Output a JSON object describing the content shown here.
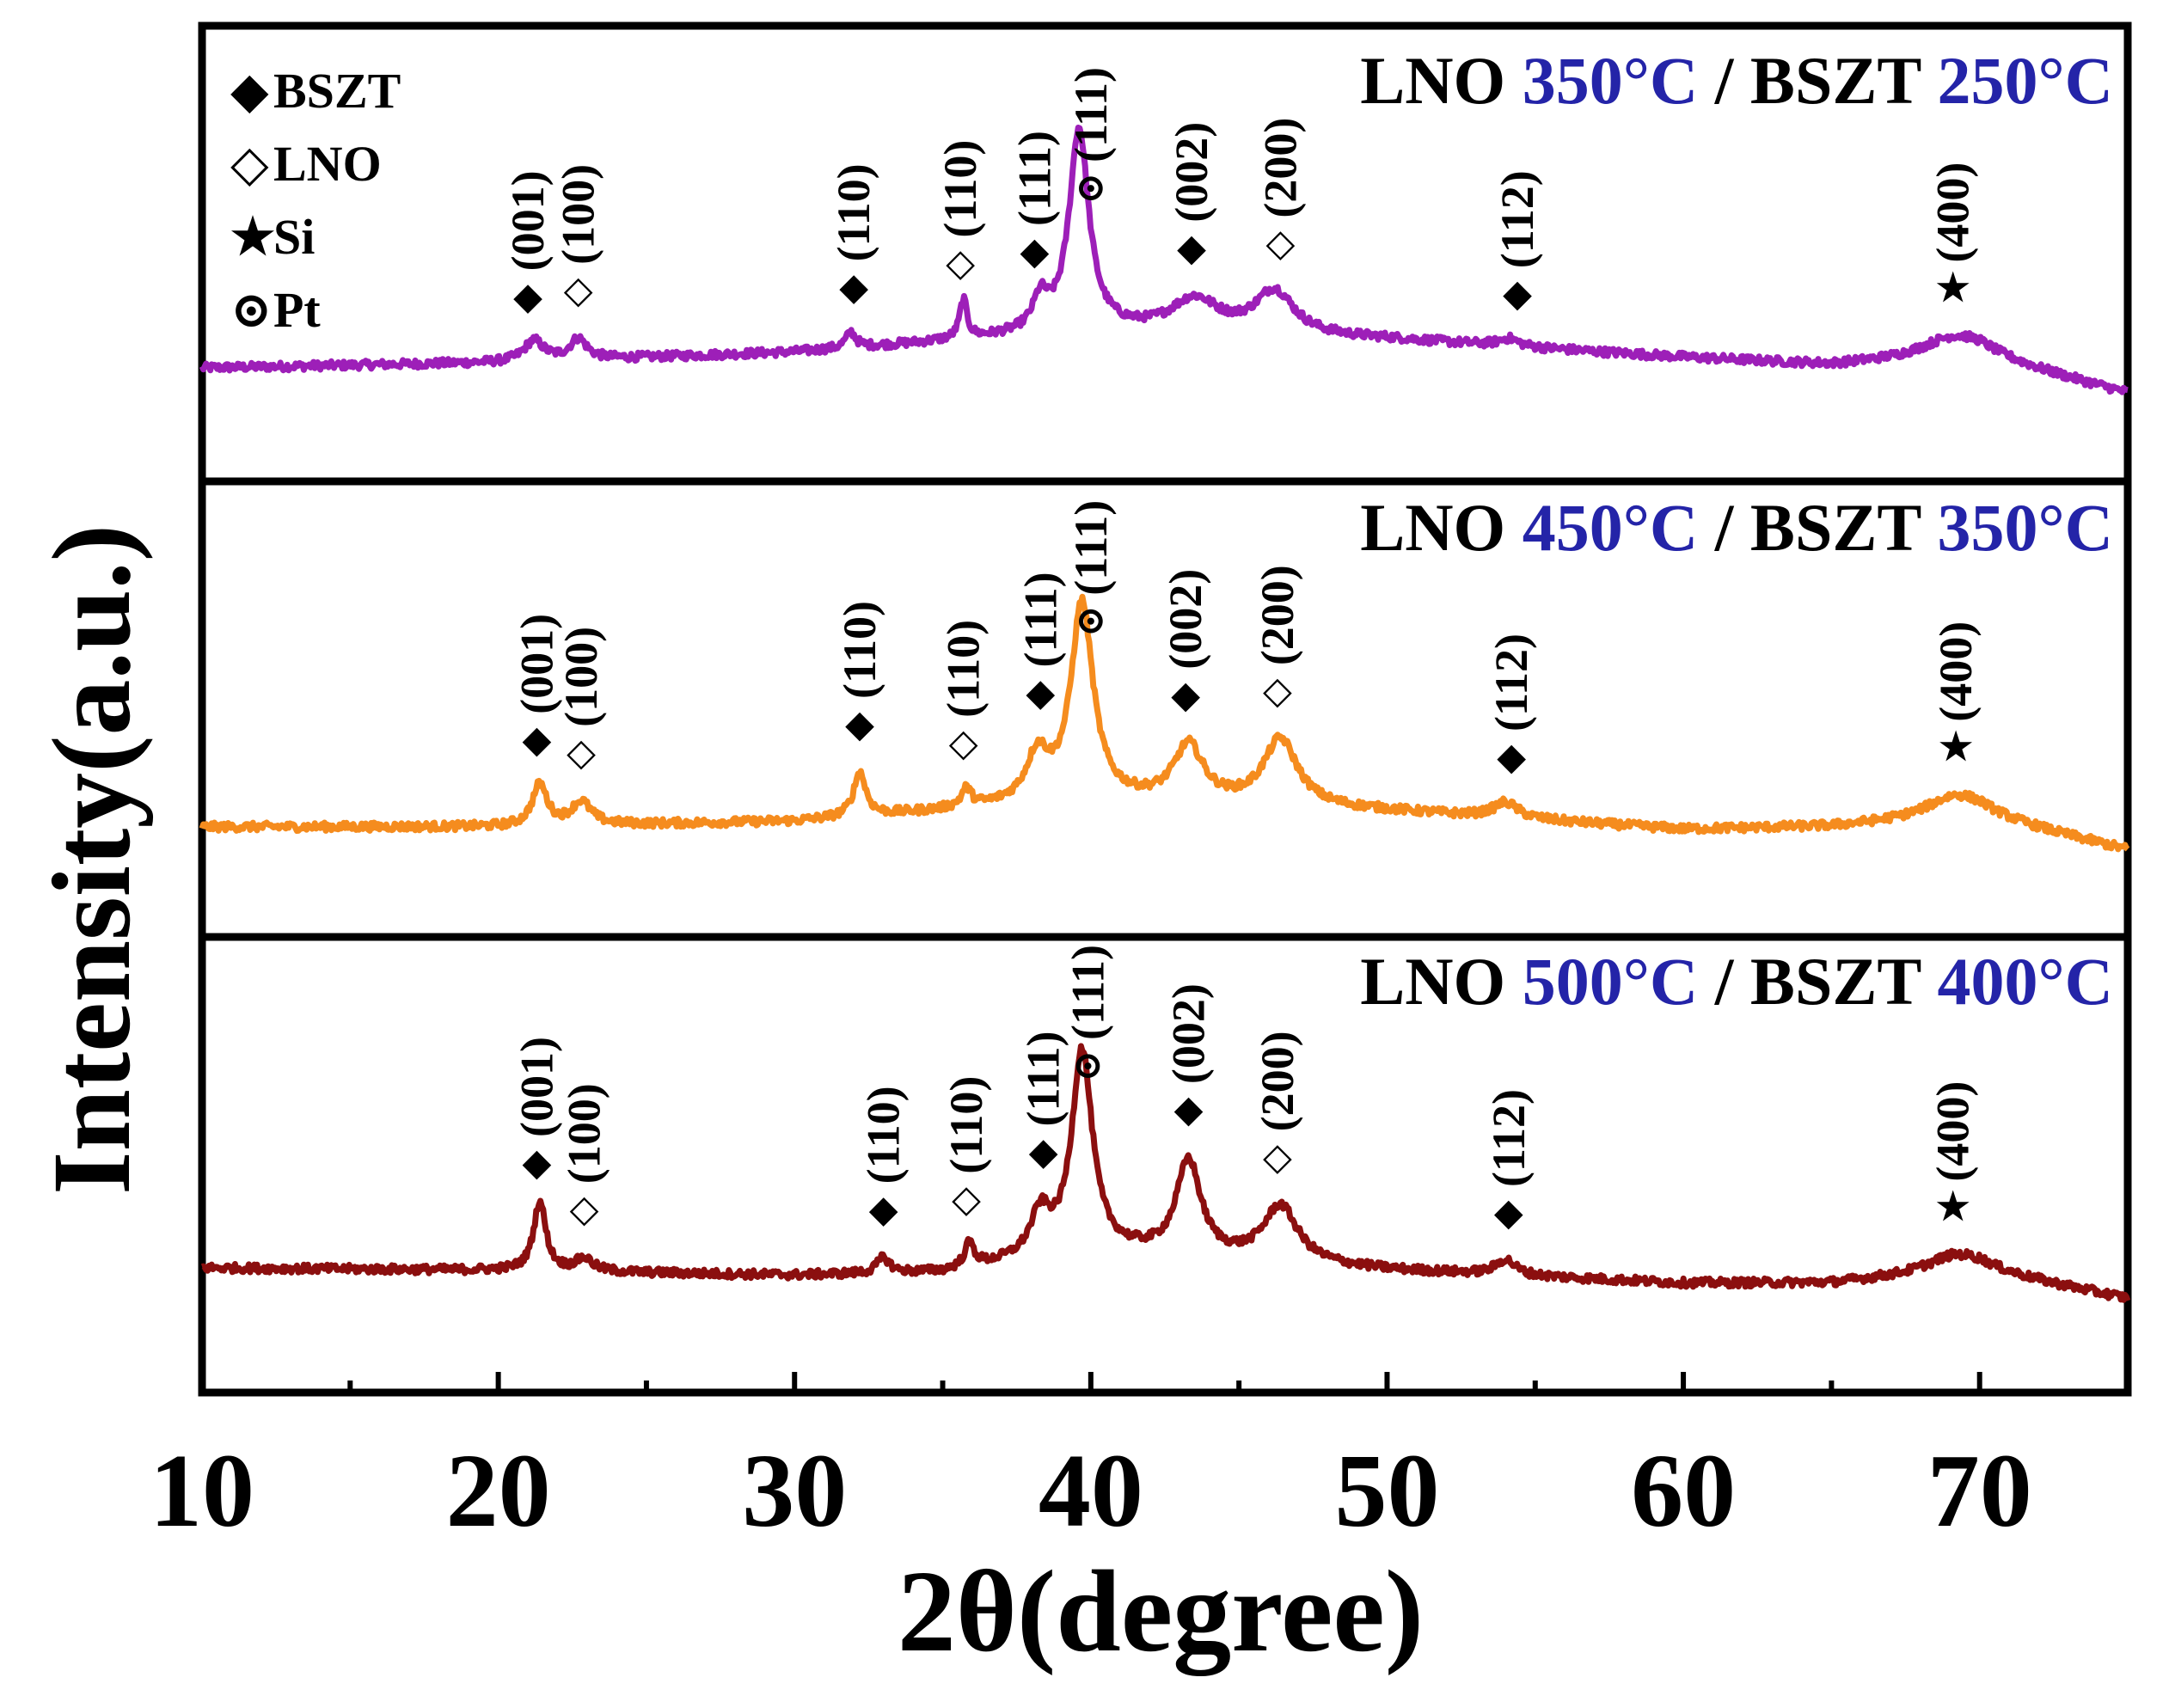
{
  "chart_data": {
    "type": "line",
    "layout": "three vertically stacked panels sharing one x axis",
    "xlabel": "2θ(degree)",
    "ylabel": "Intensity(a.u.)",
    "xlim": [
      10,
      75
    ],
    "xticks": [
      10,
      20,
      30,
      40,
      50,
      60,
      70
    ],
    "xtick_labels": [
      "10",
      "20",
      "30",
      "40",
      "50",
      "60",
      "70"
    ],
    "legend": {
      "placement": "top-left of top panel",
      "entries": [
        {
          "symbol": "◆",
          "symbol_name": "filled-diamond",
          "label": "BSZT"
        },
        {
          "symbol": "◇",
          "symbol_name": "open-diamond",
          "label": "LNO"
        },
        {
          "symbol": "★",
          "symbol_name": "star",
          "label": "Si"
        },
        {
          "symbol": "⊙",
          "symbol_name": "circled-dot",
          "label": "Pt"
        }
      ]
    },
    "series": [
      {
        "name": "LNO 350°C / BSZT 250°C",
        "title_parts": [
          "LNO ",
          "350°C",
          " / BSZT ",
          "250°C"
        ],
        "color": "#9d1fb8",
        "baseline": [
          [
            10,
            0.0
          ],
          [
            20,
            0.1
          ],
          [
            30,
            0.3
          ],
          [
            40,
            0.7
          ],
          [
            50,
            0.55
          ],
          [
            60,
            0.2
          ],
          [
            65,
            0.05
          ],
          [
            70,
            0.2
          ],
          [
            75,
            -0.5
          ]
        ],
        "peaks": [
          {
            "x": 21.2,
            "height": 0.4,
            "width": 0.4
          },
          {
            "x": 22.7,
            "height": 0.4,
            "width": 0.35
          },
          {
            "x": 31.9,
            "height": 0.3,
            "width": 0.2
          },
          {
            "x": 35.7,
            "height": 0.75,
            "width": 0.15
          },
          {
            "x": 38.3,
            "height": 0.6,
            "width": 0.3
          },
          {
            "x": 39.6,
            "height": 3.9,
            "width": 0.4
          },
          {
            "x": 43.5,
            "height": 0.65,
            "width": 1.0
          },
          {
            "x": 46.2,
            "height": 0.85,
            "width": 0.8
          },
          {
            "x": 54.1,
            "height": 0.15,
            "width": 0.4
          },
          {
            "x": 69.2,
            "height": 0.45,
            "width": 1.4
          }
        ],
        "annotations": [
          {
            "x": 21.0,
            "symbol": "◆",
            "label": "(001)"
          },
          {
            "x": 22.7,
            "symbol": "◇",
            "label": "(100)"
          },
          {
            "x": 32.0,
            "symbol": "◆",
            "label": "(110)"
          },
          {
            "x": 35.6,
            "symbol": "◇",
            "label": "(110)"
          },
          {
            "x": 38.1,
            "symbol": "◆",
            "label": "(111)"
          },
          {
            "x": 40.0,
            "symbol": "⊙",
            "label": "(111)"
          },
          {
            "x": 43.4,
            "symbol": "◆",
            "label": "(002)"
          },
          {
            "x": 46.4,
            "symbol": "◇",
            "label": "(200)"
          },
          {
            "x": 54.4,
            "symbol": "◆",
            "label": "(112)"
          },
          {
            "x": 69.1,
            "symbol": "★",
            "label": "(400)"
          }
        ]
      },
      {
        "name": "LNO 450°C / BSZT 350°C",
        "title_parts": [
          "LNO ",
          "450°C",
          " / BSZT ",
          "350°C"
        ],
        "color": "#f58c1e",
        "baseline": [
          [
            10,
            0.0
          ],
          [
            20,
            0.0
          ],
          [
            30,
            0.1
          ],
          [
            40,
            0.5
          ],
          [
            50,
            0.3
          ],
          [
            60,
            -0.05
          ],
          [
            65,
            0.0
          ],
          [
            70,
            0.2
          ],
          [
            75,
            -0.45
          ]
        ],
        "peaks": [
          {
            "x": 21.4,
            "height": 0.8,
            "width": 0.3
          },
          {
            "x": 22.8,
            "height": 0.45,
            "width": 0.4
          },
          {
            "x": 32.2,
            "height": 0.85,
            "width": 0.25
          },
          {
            "x": 35.8,
            "height": 0.35,
            "width": 0.2
          },
          {
            "x": 38.2,
            "height": 0.9,
            "width": 0.45
          },
          {
            "x": 39.7,
            "height": 3.8,
            "width": 0.45
          },
          {
            "x": 43.3,
            "height": 1.1,
            "width": 0.6
          },
          {
            "x": 46.4,
            "height": 1.3,
            "width": 0.7
          },
          {
            "x": 54.0,
            "height": 0.3,
            "width": 0.5
          },
          {
            "x": 69.2,
            "height": 0.45,
            "width": 1.2
          }
        ],
        "annotations": [
          {
            "x": 21.3,
            "symbol": "◆",
            "label": "(001)"
          },
          {
            "x": 22.8,
            "symbol": "◇",
            "label": "(100)"
          },
          {
            "x": 32.2,
            "symbol": "◆",
            "label": "(110)"
          },
          {
            "x": 35.7,
            "symbol": "◇",
            "label": "(110)"
          },
          {
            "x": 38.3,
            "symbol": "◆",
            "label": "(111)"
          },
          {
            "x": 40.0,
            "symbol": "⊙",
            "label": "(111)"
          },
          {
            "x": 43.2,
            "symbol": "◆",
            "label": "(002)"
          },
          {
            "x": 46.3,
            "symbol": "◇",
            "label": "(200)"
          },
          {
            "x": 54.2,
            "symbol": "◆",
            "label": "(112)"
          },
          {
            "x": 69.2,
            "symbol": "★",
            "label": "(400)"
          }
        ]
      },
      {
        "name": "LNO 500°C / BSZT 400°C",
        "title_parts": [
          "LNO ",
          "500°C",
          " / BSZT ",
          "400°C"
        ],
        "color": "#8b0f0f",
        "baseline": [
          [
            10,
            0.0
          ],
          [
            20,
            -0.05
          ],
          [
            30,
            -0.15
          ],
          [
            35,
            -0.1
          ],
          [
            40,
            0.3
          ],
          [
            50,
            -0.05
          ],
          [
            60,
            -0.3
          ],
          [
            65,
            -0.3
          ],
          [
            70,
            -0.05
          ],
          [
            75,
            -0.6
          ]
        ],
        "peaks": [
          {
            "x": 21.4,
            "height": 1.35,
            "width": 0.25
          },
          {
            "x": 22.9,
            "height": 0.25,
            "width": 0.35
          },
          {
            "x": 33.0,
            "height": 0.3,
            "width": 0.25
          },
          {
            "x": 35.9,
            "height": 0.45,
            "width": 0.2
          },
          {
            "x": 38.3,
            "height": 0.8,
            "width": 0.4
          },
          {
            "x": 39.7,
            "height": 3.9,
            "width": 0.42
          },
          {
            "x": 43.3,
            "height": 1.85,
            "width": 0.5
          },
          {
            "x": 46.4,
            "height": 1.1,
            "width": 0.7
          },
          {
            "x": 54.0,
            "height": 0.3,
            "width": 0.4
          },
          {
            "x": 69.2,
            "height": 0.35,
            "width": 1.2
          }
        ],
        "annotations": [
          {
            "x": 21.3,
            "symbol": "◆",
            "label": "(001)"
          },
          {
            "x": 22.9,
            "symbol": "◇",
            "label": "(100)"
          },
          {
            "x": 33.0,
            "symbol": "◆",
            "label": "(110)"
          },
          {
            "x": 35.8,
            "symbol": "◇",
            "label": "(110)"
          },
          {
            "x": 38.4,
            "symbol": "◆",
            "label": "(111)"
          },
          {
            "x": 39.9,
            "symbol": "⊙",
            "label": "(111)"
          },
          {
            "x": 43.3,
            "symbol": "◆",
            "label": "(002)"
          },
          {
            "x": 46.3,
            "symbol": "◇",
            "label": "(200)"
          },
          {
            "x": 54.1,
            "symbol": "◆",
            "label": "(112)"
          },
          {
            "x": 69.1,
            "symbol": "★",
            "label": "(400)"
          }
        ]
      }
    ]
  }
}
